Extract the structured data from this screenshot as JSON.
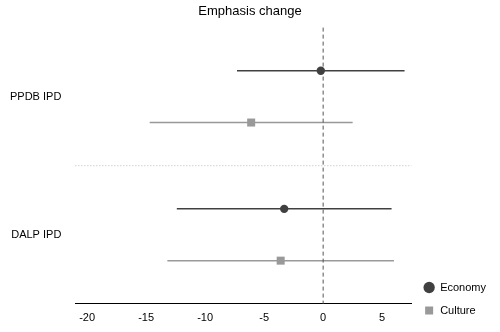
{
  "chart_data": {
    "type": "forest",
    "title": "Emphasis change",
    "orientation": "horizontal",
    "categories": [
      "PPDB IPD",
      "DALP IPD"
    ],
    "series": [
      {
        "name": "Economy",
        "color": "#404040",
        "marker": "circle",
        "values": [
          -0.2,
          -3.3
        ],
        "ci_low": [
          -7.3,
          -12.4
        ],
        "ci_high": [
          6.9,
          5.8
        ]
      },
      {
        "name": "Culture",
        "color": "#999999",
        "marker": "square",
        "values": [
          -6.1,
          -3.6
        ],
        "ci_low": [
          -14.7,
          -13.2
        ],
        "ci_high": [
          2.5,
          6.0
        ]
      }
    ],
    "xlim": [
      -21,
      7.5
    ],
    "xticks": [
      -20,
      -15,
      -10,
      -5,
      0,
      5
    ],
    "reference_line": 0,
    "legend": "lower right",
    "grid": false
  }
}
